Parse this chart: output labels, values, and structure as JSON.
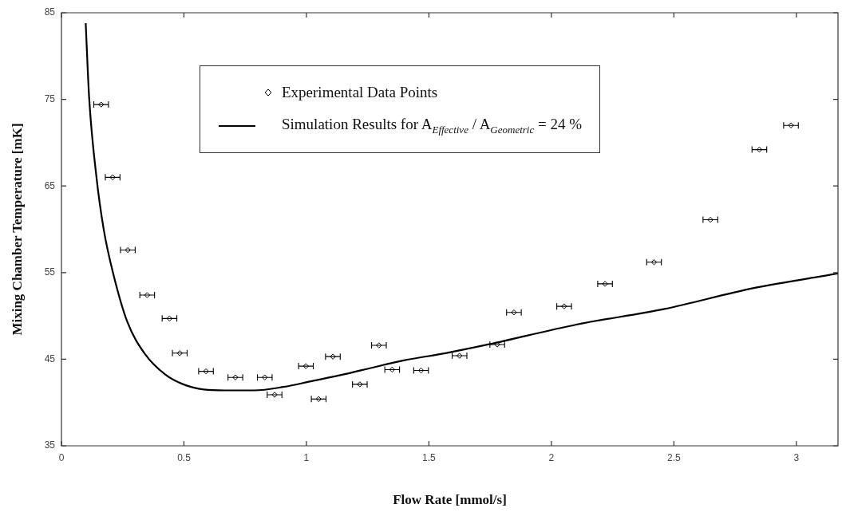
{
  "chart_data": {
    "type": "scatter",
    "xlabel": "Flow Rate [mmol/s]",
    "ylabel": "Mixing Chamber Temperature [mK]",
    "xlim": [
      0,
      3.17
    ],
    "ylim": [
      35,
      85
    ],
    "xticks": [
      0,
      0.5,
      1,
      1.5,
      2,
      2.5,
      3
    ],
    "yticks": [
      35,
      45,
      55,
      65,
      75,
      85
    ],
    "grid": false,
    "legend": "top",
    "series": [
      {
        "name": "Experimental Data Points",
        "color": "#000000",
        "marker": "diamond",
        "x": [
          0.162,
          0.209,
          0.271,
          0.35,
          0.441,
          0.483,
          0.59,
          0.71,
          0.83,
          0.87,
          0.998,
          1.05,
          1.108,
          1.218,
          1.296,
          1.35,
          1.468,
          1.625,
          1.779,
          1.847,
          2.052,
          2.219,
          2.419,
          2.649,
          2.849,
          2.978
        ],
        "values": [
          74.4,
          66.0,
          57.6,
          52.4,
          49.7,
          45.7,
          43.6,
          42.9,
          42.9,
          40.9,
          44.2,
          40.4,
          45.3,
          42.1,
          46.6,
          43.8,
          43.7,
          45.4,
          46.7,
          50.4,
          51.1,
          53.7,
          56.2,
          61.1,
          69.2,
          72.0
        ],
        "xerrors": [
          0.03,
          0.03,
          0.03,
          0.03,
          0.03,
          0.03,
          0.03,
          0.03,
          0.03,
          0.03,
          0.03,
          0.03,
          0.03,
          0.03,
          0.03,
          0.03,
          0.03,
          0.03,
          0.03,
          0.03,
          0.03,
          0.03,
          0.03,
          0.03,
          0.03,
          0.03
        ]
      },
      {
        "name": "Simulation Results for A$_{Effective}$ / A$_{Geometric}$ = 24 %",
        "type": "line",
        "color": "#000000",
        "marker": "none",
        "line_style": "solid",
        "x": [
          0.099,
          0.113,
          0.143,
          0.173,
          0.212,
          0.269,
          0.341,
          0.425,
          0.497,
          0.581,
          0.666,
          0.786,
          0.906,
          1.026,
          1.146,
          1.266,
          1.386,
          1.568,
          1.742,
          2.102,
          2.462,
          2.823,
          3.17
        ],
        "values": [
          83.8,
          75.2,
          66.0,
          59.9,
          54.8,
          49.3,
          45.6,
          43.2,
          42.1,
          41.5,
          41.4,
          41.4,
          41.8,
          42.5,
          43.2,
          44.0,
          44.8,
          45.7,
          46.7,
          49.0,
          50.8,
          53.2,
          54.9
        ]
      }
    ]
  }
}
